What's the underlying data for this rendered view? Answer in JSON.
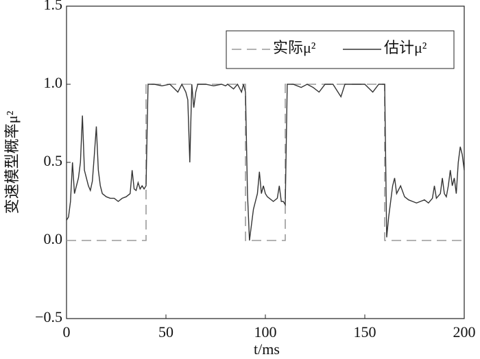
{
  "chart_data": {
    "type": "line",
    "xlabel": "t/ms",
    "ylabel": "变速模型概率μ²",
    "xlim": [
      0,
      200
    ],
    "xticks": [
      0,
      50,
      100,
      150,
      200
    ],
    "ylim": [
      -0.5,
      1.5
    ],
    "yticks": [
      {
        "value": -0.5,
        "label": "−0.5"
      },
      {
        "value": 0,
        "label": "0.0"
      },
      0.5,
      {
        "value": 1,
        "label": "1.0"
      },
      1.5
    ],
    "legend": "upper right",
    "series": [
      {
        "name": "实际μ²",
        "color": "#999999",
        "linestyle": "dashed",
        "x": [
          0,
          40,
          40,
          90,
          90,
          110,
          110,
          160,
          160,
          200
        ],
        "values": [
          0,
          0,
          1,
          1,
          0,
          0,
          1,
          1,
          0,
          0
        ]
      },
      {
        "name": "估计μ²",
        "color": "#333333",
        "linestyle": "solid",
        "x": [
          0,
          1,
          2,
          3,
          4,
          5,
          6,
          7,
          8,
          9,
          10,
          11,
          12,
          13,
          14,
          15,
          16,
          17,
          18,
          20,
          22,
          24,
          26,
          28,
          30,
          32,
          33,
          34,
          35,
          36,
          37,
          38,
          39,
          40,
          41,
          44,
          48,
          52,
          56,
          58,
          60,
          61,
          62,
          63,
          64,
          65,
          66,
          70,
          74,
          78,
          80,
          81,
          84,
          86,
          88,
          89,
          90,
          91,
          92,
          93,
          94,
          95,
          96,
          97,
          98,
          99,
          100,
          101,
          102,
          104,
          106,
          107,
          108,
          109,
          110,
          111,
          114,
          118,
          121,
          124,
          127,
          130,
          134,
          138,
          140,
          144,
          148,
          150,
          154,
          157,
          160,
          161,
          162,
          163,
          164,
          165,
          166,
          168,
          170,
          172,
          174,
          176,
          178,
          180,
          182,
          184,
          185,
          186,
          188,
          189,
          190,
          191,
          192,
          193,
          194,
          195,
          196,
          197,
          198,
          199,
          200
        ],
        "values": [
          0.13,
          0.15,
          0.25,
          0.5,
          0.3,
          0.35,
          0.4,
          0.5,
          0.8,
          0.45,
          0.4,
          0.35,
          0.32,
          0.38,
          0.55,
          0.73,
          0.45,
          0.35,
          0.3,
          0.28,
          0.27,
          0.27,
          0.25,
          0.27,
          0.28,
          0.3,
          0.45,
          0.33,
          0.32,
          0.37,
          0.33,
          0.35,
          0.33,
          0.35,
          1,
          1,
          0.99,
          1,
          0.95,
          1,
          0.95,
          0.9,
          0.5,
          1,
          0.85,
          0.95,
          1,
          1,
          0.99,
          1,
          0.99,
          1,
          0.97,
          1,
          0.95,
          1,
          0.95,
          0.3,
          0,
          0.1,
          0.2,
          0.25,
          0.3,
          0.44,
          0.3,
          0.35,
          0.3,
          0.28,
          0.27,
          0.25,
          0.27,
          0.35,
          0.25,
          0.25,
          0.23,
          1,
          1,
          0.98,
          1,
          0.98,
          0.95,
          1,
          1,
          0.92,
          1,
          1,
          1,
          1,
          0.95,
          1,
          1,
          0.02,
          0.15,
          0.25,
          0.35,
          0.4,
          0.3,
          0.35,
          0.28,
          0.26,
          0.25,
          0.24,
          0.25,
          0.26,
          0.24,
          0.27,
          0.35,
          0.27,
          0.3,
          0.4,
          0.3,
          0.28,
          0.35,
          0.45,
          0.35,
          0.4,
          0.3,
          0.5,
          0.6,
          0.55,
          0.45
        ]
      }
    ]
  }
}
